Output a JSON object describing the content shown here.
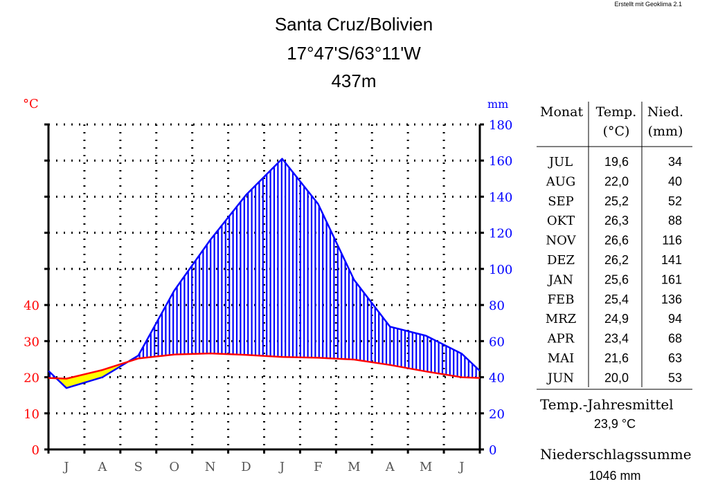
{
  "credit": "Erstellt mit Geoklima 2.1",
  "title": {
    "station": "Santa Cruz/Bolivien",
    "coords": "17°47'S/63°11'W",
    "elevation": "437m"
  },
  "colors": {
    "temperature": "#ff0000",
    "precipitation": "#0000ff",
    "dry_fill": "#ffff00",
    "humid_fill": "#0000ff"
  },
  "chart_data": {
    "type": "line",
    "title": "Santa Cruz/Bolivien 17°47'S/63°11'W 437m",
    "x": [
      "J",
      "A",
      "S",
      "O",
      "N",
      "D",
      "J",
      "F",
      "M",
      "A",
      "M",
      "J"
    ],
    "series": [
      {
        "name": "Temp.",
        "unit": "°C",
        "axis": "left",
        "color": "#ff0000",
        "values": [
          19.6,
          22.0,
          25.2,
          26.3,
          26.6,
          26.2,
          25.6,
          25.4,
          24.9,
          23.4,
          21.6,
          20.0
        ]
      },
      {
        "name": "Nied.",
        "unit": "mm",
        "axis": "right",
        "color": "#0000ff",
        "values": [
          34,
          40,
          52,
          88,
          116,
          141,
          161,
          136,
          94,
          68,
          63,
          53
        ]
      }
    ],
    "y_left": {
      "label": "°C",
      "ticks": [
        "0",
        "10",
        "20",
        "30",
        "40"
      ],
      "ylim": [
        0,
        90
      ]
    },
    "y_right": {
      "label": "mm",
      "ticks": [
        "0",
        "20",
        "40",
        "60",
        "80",
        "100",
        "120",
        "140",
        "160",
        "180"
      ],
      "ylim": [
        0,
        180
      ]
    },
    "grid": true
  },
  "table": {
    "headers": {
      "month": "Monat",
      "temp": "Temp.",
      "temp_unit": "(°C)",
      "prec": "Nied.",
      "prec_unit": "(mm)"
    },
    "rows": [
      {
        "month": "JUL",
        "temp": "19,6",
        "prec": "34"
      },
      {
        "month": "AUG",
        "temp": "22,0",
        "prec": "40"
      },
      {
        "month": "SEP",
        "temp": "25,2",
        "prec": "52"
      },
      {
        "month": "OKT",
        "temp": "26,3",
        "prec": "88"
      },
      {
        "month": "NOV",
        "temp": "26,6",
        "prec": "116"
      },
      {
        "month": "DEZ",
        "temp": "26,2",
        "prec": "141"
      },
      {
        "month": "JAN",
        "temp": "25,6",
        "prec": "161"
      },
      {
        "month": "FEB",
        "temp": "25,4",
        "prec": "136"
      },
      {
        "month": "MRZ",
        "temp": "24,9",
        "prec": "94"
      },
      {
        "month": "APR",
        "temp": "23,4",
        "prec": "68"
      },
      {
        "month": "MAI",
        "temp": "21,6",
        "prec": "63"
      },
      {
        "month": "JUN",
        "temp": "20,0",
        "prec": "53"
      }
    ]
  },
  "summary": {
    "mean_label": "Temp.-Jahresmittel",
    "mean_value": "23,9 °C",
    "sum_label": "Niederschlagssumme",
    "sum_value": "1046 mm"
  }
}
